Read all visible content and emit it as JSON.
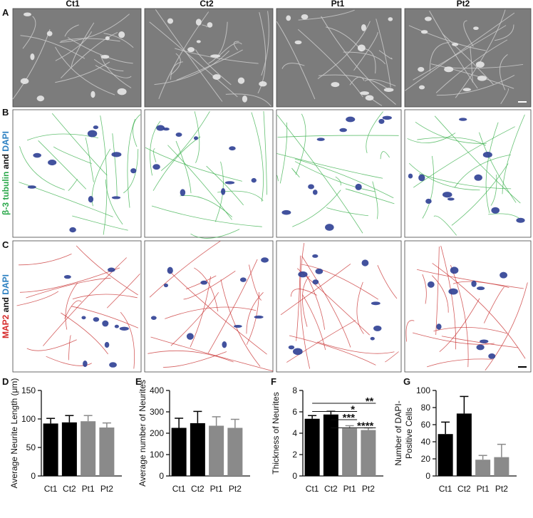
{
  "panels": [
    "A",
    "B",
    "C",
    "D",
    "E",
    "F",
    "G"
  ],
  "columns": [
    "Ct1",
    "Ct2",
    "Pt1",
    "Pt2"
  ],
  "rows": [
    [
      {
        "text": "β-3 tubulin",
        "color": "#2aa84a"
      },
      {
        "text": " and ",
        "color": "#111111"
      },
      {
        "text": "DAPI",
        "color": "#2a7fc1"
      }
    ],
    [
      {
        "text": "MAP2",
        "color": "#d62a2a"
      },
      {
        "text": " and ",
        "color": "#111111"
      },
      {
        "text": "DAPI",
        "color": "#2a7fc1"
      }
    ]
  ],
  "chart_data": [
    {
      "type": "bar",
      "ylabel": [
        "Average Neurite Length (μm)"
      ],
      "categories": [
        "Ct1",
        "Ct2",
        "Pt1",
        "Pt2"
      ],
      "values": [
        92,
        94,
        96,
        85
      ],
      "errors": [
        9,
        12,
        10,
        8
      ],
      "colors": [
        "#000000",
        "#000000",
        "#8a8a8a",
        "#8a8a8a"
      ],
      "ylim": [
        0,
        150
      ],
      "yticks": [
        0,
        50,
        100,
        150
      ]
    },
    {
      "type": "bar",
      "ylabel": [
        "Average number of Neurites"
      ],
      "categories": [
        "Ct1",
        "Ct2",
        "Pt1",
        "Pt2"
      ],
      "values": [
        225,
        247,
        235,
        225
      ],
      "errors": [
        45,
        55,
        42,
        40
      ],
      "colors": [
        "#000000",
        "#000000",
        "#8a8a8a",
        "#8a8a8a"
      ],
      "ylim": [
        0,
        400
      ],
      "yticks": [
        0,
        100,
        200,
        300,
        400
      ]
    },
    {
      "type": "bar",
      "ylabel": [
        "Thickness of Neurites"
      ],
      "categories": [
        "Ct1",
        "Ct2",
        "Pt1",
        "Pt2"
      ],
      "values": [
        5.35,
        5.75,
        4.45,
        4.3
      ],
      "errors": [
        0.3,
        0.3,
        0.25,
        0.2
      ],
      "colors": [
        "#000000",
        "#000000",
        "#8a8a8a",
        "#8a8a8a"
      ],
      "ylim": [
        0,
        8
      ],
      "yticks": [
        0,
        2,
        4,
        6,
        8
      ],
      "comparisons": [
        {
          "label": "**",
          "from": 0,
          "to": 3
        },
        {
          "label": "*",
          "from": 0,
          "to": 2
        },
        {
          "label": "***",
          "from": 1,
          "to": 2
        },
        {
          "label": "****",
          "from": 1,
          "to": 3
        }
      ]
    },
    {
      "type": "bar",
      "ylabel": [
        "Number of DAPI-",
        "Positive Cells"
      ],
      "categories": [
        "Ct1",
        "Ct2",
        "Pt1",
        "Pt2"
      ],
      "values": [
        49,
        73,
        19,
        22
      ],
      "errors": [
        14,
        20,
        5,
        15
      ],
      "colors": [
        "#000000",
        "#000000",
        "#8a8a8a",
        "#8a8a8a"
      ],
      "ylim": [
        0,
        100
      ],
      "yticks": [
        0,
        20,
        40,
        60,
        80,
        100
      ]
    }
  ]
}
